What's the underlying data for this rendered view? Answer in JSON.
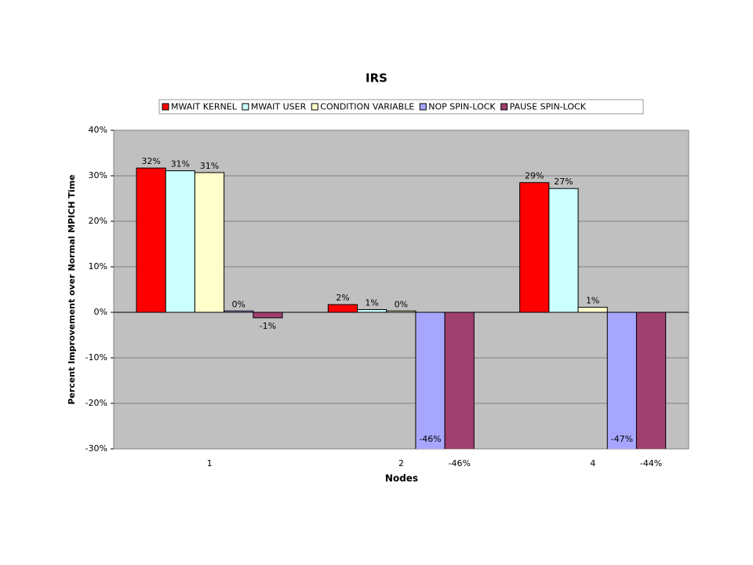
{
  "chart_data": {
    "type": "bar",
    "title": "IRS",
    "x_label": "Nodes",
    "y_label": "Percent Improvement over Normal MPICH Time",
    "categories": [
      "1",
      "2",
      "4"
    ],
    "series": [
      {
        "name": "MWAIT KERNEL",
        "color": "#ff0000",
        "values": [
          31.7,
          1.7,
          28.5
        ],
        "value_labels": [
          "32%",
          "2%",
          "29%"
        ]
      },
      {
        "name": "MWAIT USER",
        "color": "#ccffff",
        "values": [
          31.1,
          0.6,
          27.2
        ],
        "value_labels": [
          "31%",
          "1%",
          "27%"
        ]
      },
      {
        "name": "CONDITION VARIABLE",
        "color": "#ffffcc",
        "values": [
          30.7,
          0.3,
          1.1
        ],
        "value_labels": [
          "31%",
          "0%",
          "1%"
        ]
      },
      {
        "name": "NOP SPIN-LOCK",
        "color": "#a6a6ff",
        "values": [
          0.3,
          -46,
          -47
        ],
        "value_labels": [
          "0%",
          "-46%",
          "-47%"
        ]
      },
      {
        "name": "PAUSE SPIN-LOCK",
        "color": "#a0406e",
        "values": [
          -1.2,
          -46,
          -44
        ],
        "value_labels": [
          "-1%",
          "-46%",
          "-44%"
        ]
      }
    ],
    "ylim": [
      -30,
      40
    ],
    "yticks": [
      {
        "value": -30,
        "label": "-30%"
      },
      {
        "value": -20,
        "label": "-20%"
      },
      {
        "value": -10,
        "label": "-10%"
      },
      {
        "value": 0,
        "label": "0%"
      },
      {
        "value": 10,
        "label": "10%"
      },
      {
        "value": 20,
        "label": "20%"
      },
      {
        "value": 30,
        "label": "30%"
      },
      {
        "value": 40,
        "label": "40%"
      }
    ],
    "grid": true
  }
}
